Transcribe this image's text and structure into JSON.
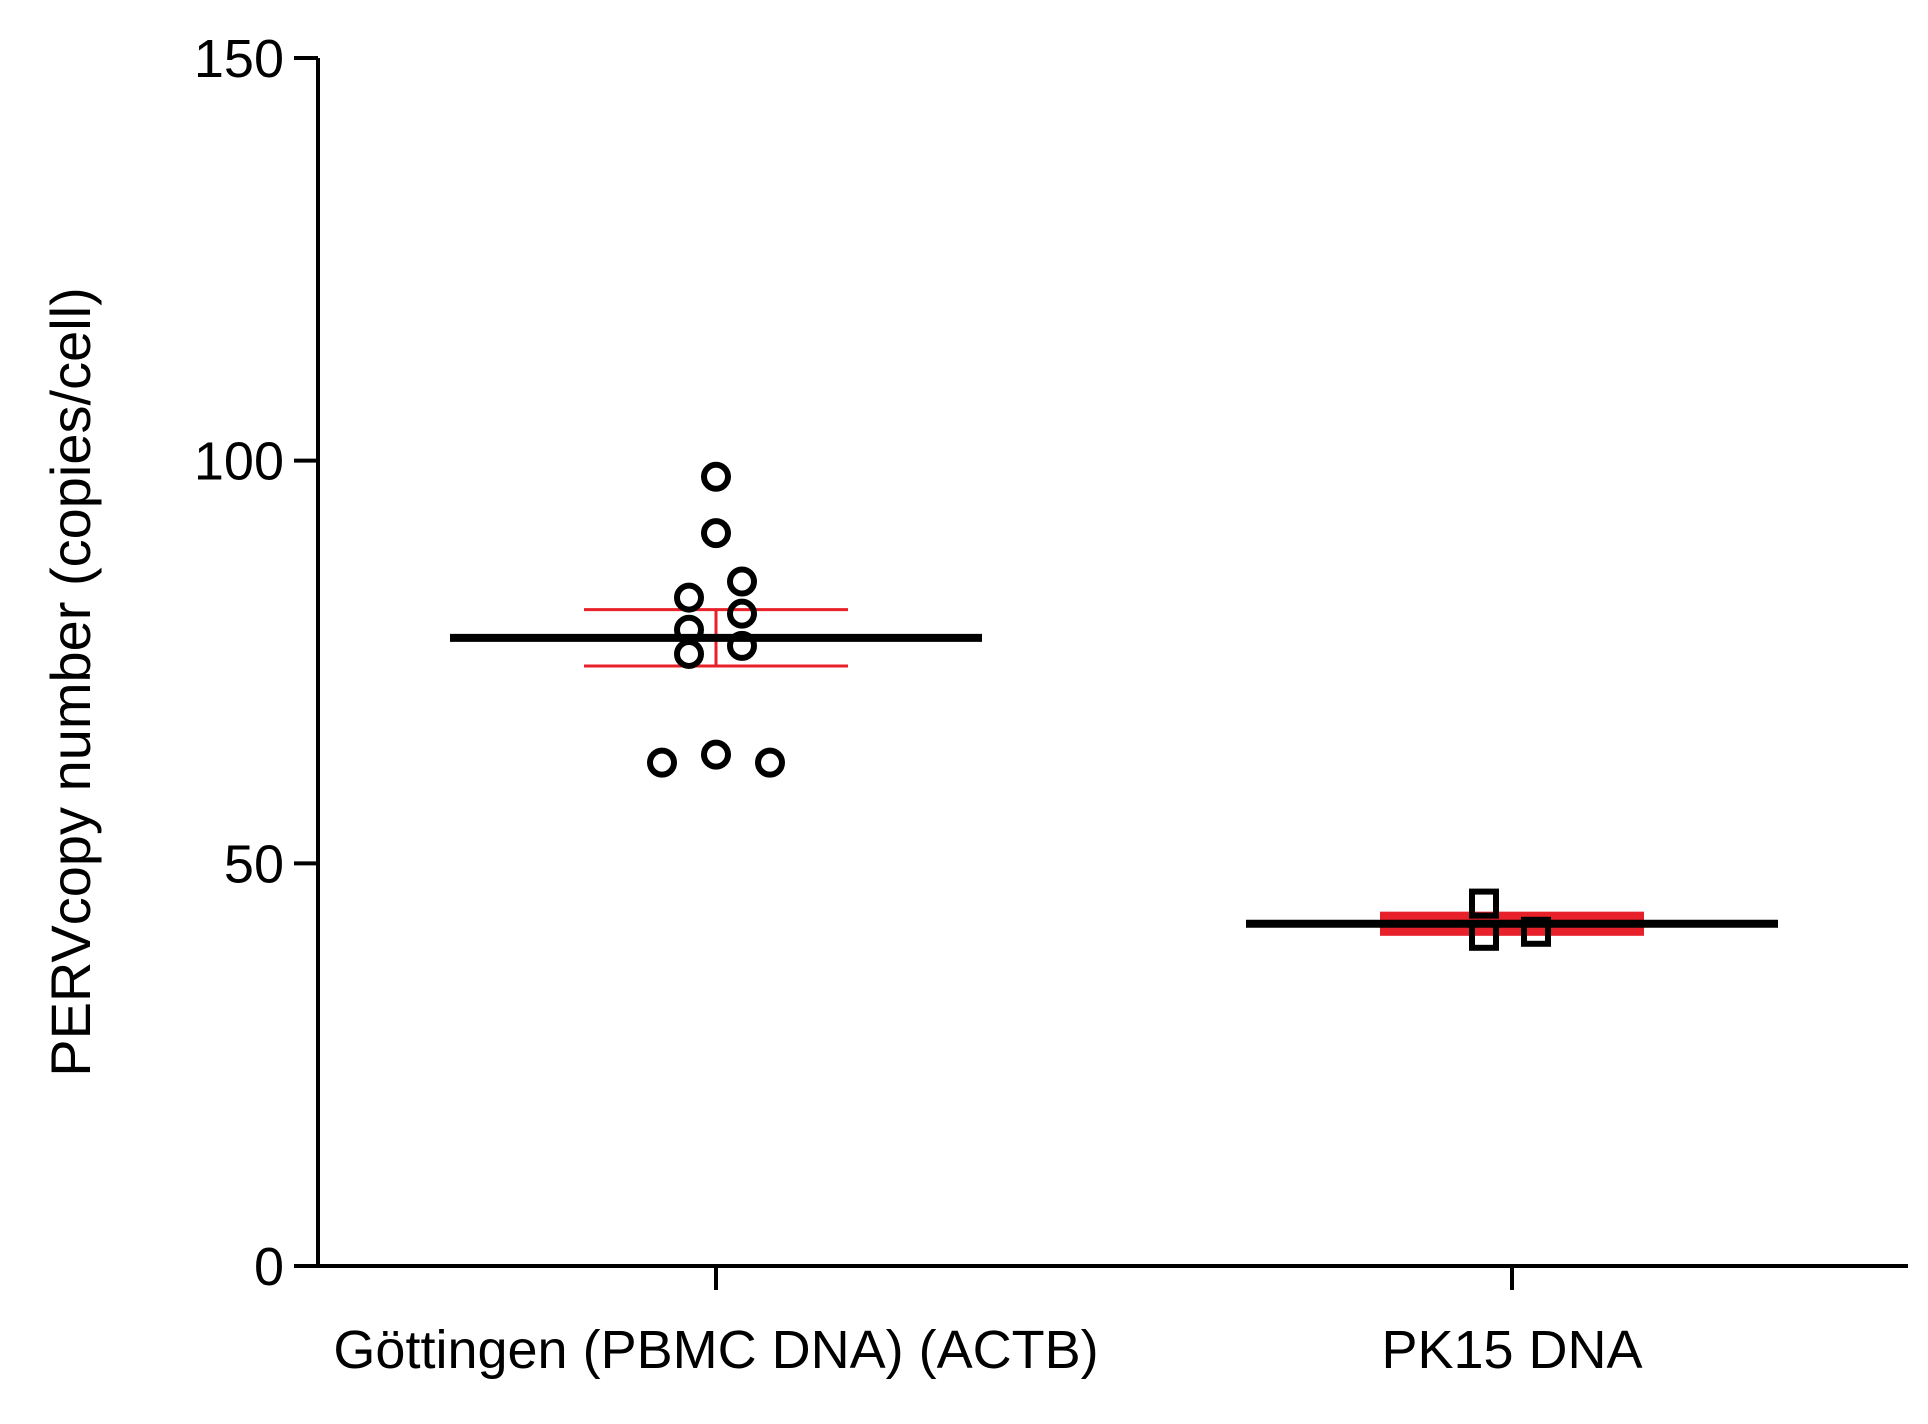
{
  "chart_data": {
    "type": "scatter",
    "ylabel": "PERVcopy number (copies/cell)",
    "xlabel": "",
    "ylim": [
      0,
      150
    ],
    "yticks": [
      0,
      50,
      100,
      150
    ],
    "grid": false,
    "categories": [
      "Göttingen (PBMC DNA) (ACTB)",
      "PK15 DNA"
    ],
    "groups": [
      {
        "category": "Göttingen (PBMC DNA) (ACTB)",
        "marker": "circle",
        "points": [
          98,
          91,
          85,
          83,
          81,
          79,
          77,
          76,
          63.5,
          62.5,
          62.5
        ],
        "mean": 78,
        "error_low": 74.5,
        "error_high": 81.5
      },
      {
        "category": "PK15 DNA",
        "marker": "square",
        "points": [
          45,
          41,
          41.5
        ],
        "mean": 42.5,
        "error_low": 41,
        "error_high": 44
      }
    ],
    "colors": {
      "points": "#000000",
      "mean_line": "#000000",
      "error_bars": "#e8202a",
      "axis": "#000000"
    }
  }
}
